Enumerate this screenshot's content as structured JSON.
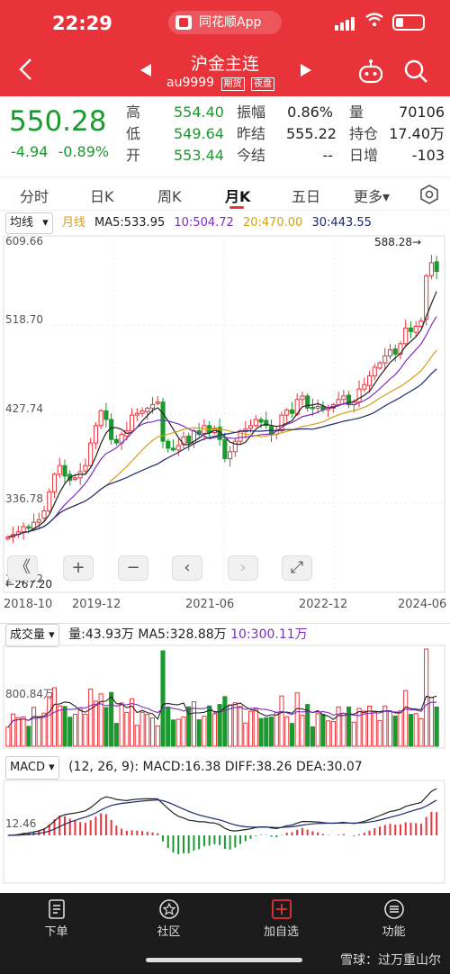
{
  "status": {
    "time": "22:29",
    "app": "同花顺App"
  },
  "header": {
    "title": "沪金主连",
    "code": "au9999",
    "tag_futures": "期货",
    "tag_night": "夜盘"
  },
  "quote": {
    "price": "550.28",
    "change": "-4.94",
    "change_pct": "-0.89%",
    "high_label": "高",
    "high": "554.40",
    "low_label": "低",
    "low": "549.64",
    "open_label": "开",
    "open": "553.44",
    "amp_label": "振幅",
    "amp": "0.86%",
    "prev_label": "昨结",
    "prev": "555.22",
    "today_label": "今结",
    "today": "--",
    "vol_label": "量",
    "vol": "70106",
    "oi_label": "持仓",
    "oi": "17.40万",
    "daily_inc_label": "日增",
    "daily_inc": "-103"
  },
  "tabs": [
    "分时",
    "日K",
    "周K",
    "月K",
    "五日",
    "更多▾"
  ],
  "ma": {
    "label_a": "均线",
    "label_b": "月线",
    "ma5": "MA5:533.95",
    "ma10": "10:504.72",
    "ma20": "20:470.00",
    "ma30": "30:443.55"
  },
  "price_axis": [
    "609.66",
    "518.70",
    "427.74",
    "336.78",
    "245.82"
  ],
  "max_marker": "588.28→",
  "min_marker": "←267.20",
  "date_axis": [
    "2018-10",
    "2019-12",
    "2021-06",
    "2022-12",
    "2024-06"
  ],
  "controls": {
    "collapse": "《",
    "zoom_in": "+",
    "zoom_out": "−",
    "left": "‹",
    "right": "›",
    "fullscreen": "⤢"
  },
  "volume": {
    "title": "成交量",
    "vol": "量:43.93万",
    "ma5": "MA5:328.88万",
    "ma10": "10:300.11万",
    "axis": "800.84万"
  },
  "macd": {
    "title": "MACD",
    "params": "(12, 26, 9):",
    "macd": "MACD:16.38",
    "diff": "DIFF:38.26",
    "dea": "DEA:30.07",
    "axis": "12.46"
  },
  "nav": [
    "下单",
    "社区",
    "加自选",
    "功能"
  ],
  "watermark": "雪球：过万重山尔",
  "colors": {
    "red": "#e8333b",
    "green": "#1a9a2e",
    "ma5": "#222222",
    "ma10": "#7b2fbe",
    "ma20": "#d4a017",
    "ma30": "#1c2a6b"
  },
  "chart_data": {
    "type": "candlestick",
    "period": "monthly",
    "ylim": [
      245.82,
      609.66
    ],
    "closes": [
      270,
      273,
      276,
      282,
      280,
      287,
      290,
      300,
      322,
      342,
      352,
      340,
      335,
      338,
      345,
      352,
      378,
      398,
      415,
      405,
      382,
      378,
      388,
      392,
      410,
      412,
      415,
      418,
      422,
      425,
      380,
      372,
      370,
      375,
      385,
      378,
      392,
      388,
      398,
      390,
      395,
      382,
      360,
      368,
      380,
      392,
      394,
      398,
      405,
      402,
      398,
      388,
      392,
      410,
      416,
      412,
      428,
      432,
      418,
      418,
      420,
      416,
      418,
      422,
      428,
      432,
      422,
      425,
      440,
      445,
      455,
      465,
      470,
      478,
      485,
      480,
      492,
      510,
      506,
      512,
      518,
      570,
      585,
      575
    ],
    "opens": [
      268,
      270,
      273,
      276,
      282,
      280,
      287,
      292,
      300,
      322,
      342,
      352,
      342,
      337,
      338,
      346,
      352,
      378,
      398,
      415,
      405,
      382,
      378,
      386,
      392,
      410,
      412,
      414,
      418,
      424,
      425,
      380,
      372,
      370,
      376,
      386,
      378,
      392,
      389,
      398,
      390,
      396,
      382,
      360,
      368,
      380,
      391,
      395,
      398,
      405,
      404,
      397,
      388,
      392,
      410,
      416,
      411,
      428,
      432,
      419,
      418,
      420,
      416,
      418,
      422,
      428,
      433,
      422,
      425,
      440,
      444,
      455,
      464,
      470,
      478,
      486,
      480,
      492,
      510,
      505,
      512,
      520,
      570,
      586
    ]
  }
}
